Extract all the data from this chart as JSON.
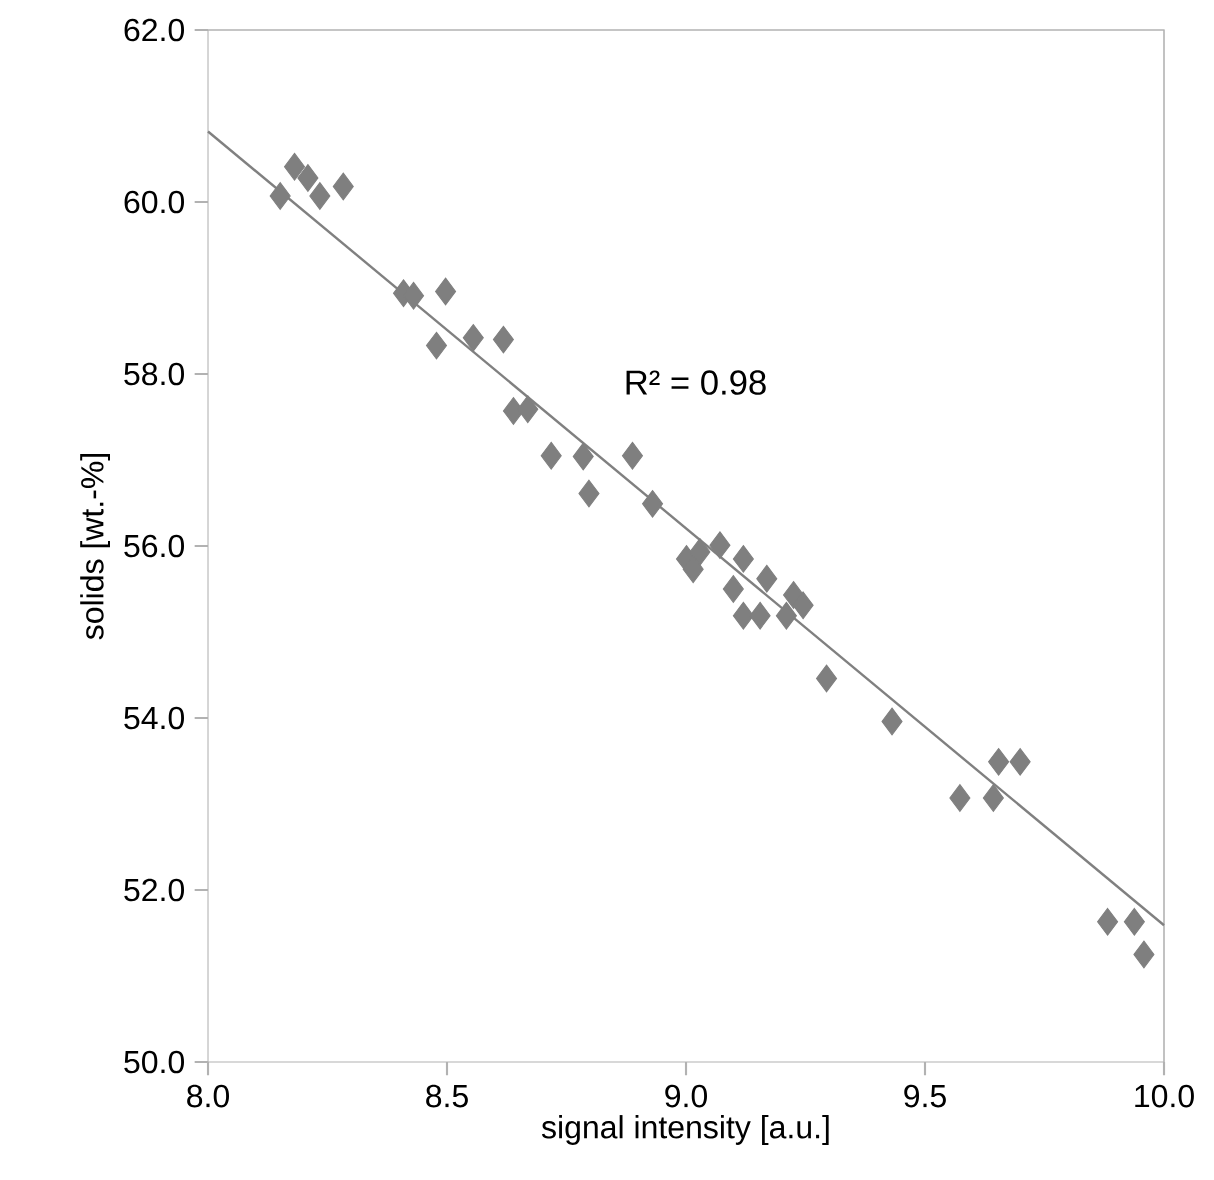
{
  "chart_data": {
    "type": "scatter",
    "xlabel": "signal intensity [a.u.]",
    "ylabel": "solids [wt.-%]",
    "xlim": [
      8.0,
      10.0
    ],
    "ylim": [
      50.0,
      62.0
    ],
    "xticks": [
      {
        "value": 8,
        "label": "8.0"
      },
      {
        "value": 8.5,
        "label": "8.5"
      },
      {
        "value": 9,
        "label": "9.0"
      },
      {
        "value": 9.5,
        "label": "9.5"
      },
      {
        "value": 10,
        "label": "10.0"
      }
    ],
    "yticks": [
      {
        "value": 50,
        "label": "50.0"
      },
      {
        "value": 52,
        "label": "52.0"
      },
      {
        "value": 54,
        "label": "54.0"
      },
      {
        "value": 56,
        "label": "56.0"
      },
      {
        "value": 58,
        "label": "58.0"
      },
      {
        "value": 60,
        "label": "60.0"
      },
      {
        "value": 62,
        "label": "62.0"
      }
    ],
    "grid": false,
    "annotations": [
      "R² = 0.98"
    ],
    "series": [
      {
        "marker": "diamond",
        "color": "#7f7f7f",
        "x": [
          8.151,
          8.181,
          8.209,
          8.234,
          8.283,
          8.409,
          8.43,
          8.497,
          8.478,
          8.555,
          8.618,
          8.639,
          8.669,
          8.718,
          8.785,
          8.797,
          8.888,
          8.93,
          9.001,
          9.029,
          9.071,
          9.015,
          9.12,
          9.099,
          9.169,
          9.12,
          9.155,
          9.225,
          9.245,
          9.21,
          9.294,
          9.431,
          9.573,
          9.643,
          9.654,
          9.699,
          9.882,
          9.938,
          9.958
        ],
        "values": [
          60.07,
          60.41,
          60.28,
          60.07,
          60.18,
          58.94,
          58.91,
          58.96,
          58.33,
          58.42,
          58.4,
          57.57,
          57.59,
          57.05,
          57.04,
          56.61,
          57.05,
          56.49,
          55.85,
          55.93,
          56.01,
          55.73,
          55.85,
          55.5,
          55.62,
          55.19,
          55.19,
          55.43,
          55.31,
          55.19,
          54.46,
          53.96,
          53.07,
          53.07,
          53.49,
          53.49,
          51.63,
          51.63,
          51.25
        ]
      },
      {
        "type": "line",
        "marker": "none",
        "color": "#808080",
        "x": [
          8.0,
          10.0
        ],
        "values": [
          60.82,
          51.59
        ]
      }
    ]
  }
}
